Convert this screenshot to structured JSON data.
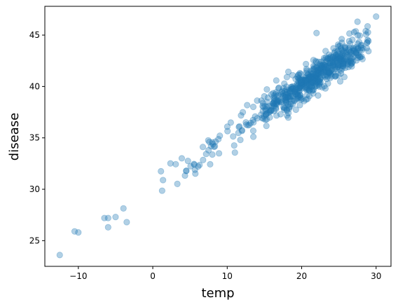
{
  "chart_data": {
    "type": "scatter",
    "title": "",
    "xlabel": "temp",
    "ylabel": "disease",
    "xlim": [
      -14.5,
      32
    ],
    "ylim": [
      22.5,
      47.8
    ],
    "xticks": [
      -10,
      0,
      10,
      20,
      30
    ],
    "yticks": [
      25,
      30,
      35,
      40,
      45
    ],
    "grid": false,
    "legend": "none",
    "marker_color": "#1f77b4",
    "marker_alpha": 0.35,
    "seed": 7,
    "n_points": 640,
    "trend": {
      "intercept": 30.0,
      "slope": 0.5,
      "noise_sd": 0.75
    },
    "x_distribution": {
      "min": -4,
      "max": 29,
      "center": 22,
      "spread": 9.5
    },
    "outliers": [
      {
        "x": -12.5,
        "y": 23.6
      },
      {
        "x": -10.5,
        "y": 25.9
      },
      {
        "x": -10.0,
        "y": 25.8
      },
      {
        "x": -6.5,
        "y": 27.2
      },
      {
        "x": -6.0,
        "y": 26.3
      },
      {
        "x": -6.0,
        "y": 27.2
      },
      {
        "x": -5.0,
        "y": 27.3
      },
      {
        "x": -3.5,
        "y": 26.8
      },
      {
        "x": 22.0,
        "y": 45.2
      },
      {
        "x": 27.5,
        "y": 46.3
      },
      {
        "x": 30.0,
        "y": 46.8
      }
    ]
  }
}
